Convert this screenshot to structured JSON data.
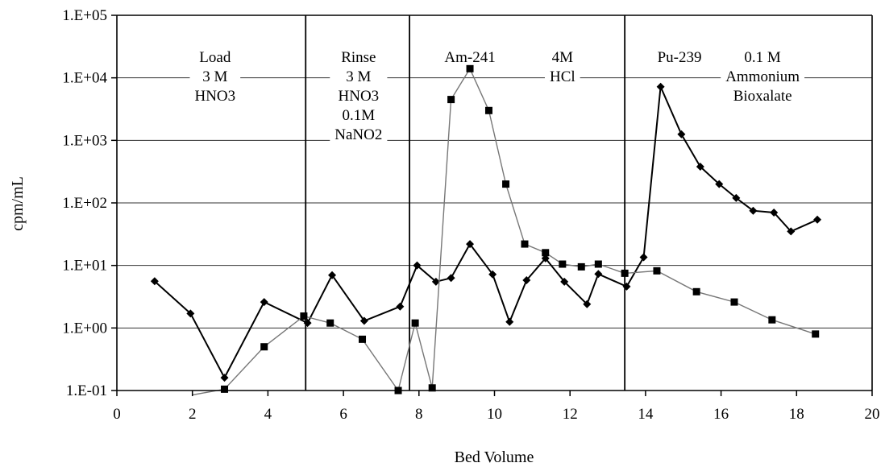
{
  "chart_data": {
    "type": "line",
    "xlabel": "Bed Volume",
    "ylabel": "cpm/mL",
    "xlim": [
      0,
      20
    ],
    "ylim": [
      0.1,
      100000
    ],
    "y_scale": "log",
    "x_ticks": [
      "0",
      "2",
      "4",
      "6",
      "8",
      "10",
      "12",
      "14",
      "16",
      "18",
      "20"
    ],
    "y_ticks": [
      "1.E-01",
      "1.E+00",
      "1.E+01",
      "1.E+02",
      "1.E+03",
      "1.E+04",
      "1.E+05"
    ],
    "grid": "horizontal",
    "series": [
      {
        "marker": "diamond",
        "color": "#000000",
        "points": [
          [
            1.0,
            5.6
          ],
          [
            1.95,
            1.7
          ],
          [
            2.85,
            0.16
          ],
          [
            3.9,
            2.6
          ],
          [
            5.05,
            1.2
          ],
          [
            5.7,
            7.0
          ],
          [
            6.55,
            1.3
          ],
          [
            7.5,
            2.2
          ],
          [
            7.95,
            10.0
          ],
          [
            8.45,
            5.5
          ],
          [
            8.85,
            6.3
          ],
          [
            9.35,
            22
          ],
          [
            9.95,
            7.2
          ],
          [
            10.4,
            1.25
          ],
          [
            10.85,
            5.8
          ],
          [
            11.35,
            13
          ],
          [
            11.85,
            5.5
          ],
          [
            12.45,
            2.4
          ],
          [
            12.75,
            7.3
          ],
          [
            13.5,
            4.6
          ],
          [
            13.95,
            13.5
          ],
          [
            14.4,
            7200
          ],
          [
            14.95,
            1250
          ],
          [
            15.45,
            380
          ],
          [
            15.95,
            200
          ],
          [
            16.4,
            120
          ],
          [
            16.85,
            75
          ],
          [
            17.4,
            70
          ],
          [
            17.85,
            35
          ],
          [
            18.55,
            54
          ]
        ]
      },
      {
        "marker": "square",
        "color": "#777777",
        "points": [
          [
            2.0,
            0.085
          ],
          [
            2.85,
            0.105
          ],
          [
            3.9,
            0.5
          ],
          [
            4.95,
            1.55
          ],
          [
            5.65,
            1.2
          ],
          [
            6.5,
            0.66
          ],
          [
            7.45,
            0.1
          ],
          [
            7.9,
            1.2
          ],
          [
            8.35,
            0.11
          ],
          [
            8.85,
            4500
          ],
          [
            9.35,
            14000
          ],
          [
            9.85,
            3000
          ],
          [
            10.3,
            200
          ],
          [
            10.8,
            22
          ],
          [
            11.35,
            16
          ],
          [
            11.8,
            10.5
          ],
          [
            12.3,
            9.5
          ],
          [
            12.75,
            10.5
          ],
          [
            13.45,
            7.5
          ],
          [
            14.3,
            8.2
          ],
          [
            15.35,
            3.8
          ],
          [
            16.35,
            2.6
          ],
          [
            17.35,
            1.35
          ],
          [
            18.5,
            0.8
          ]
        ]
      }
    ],
    "dividers": [
      5.0,
      7.75,
      13.45
    ],
    "annotations": [
      {
        "lines": [
          "Load",
          "3 M",
          "HNO3"
        ],
        "x": 2.6
      },
      {
        "lines": [
          "Rinse",
          "3 M",
          "HNO3",
          "0.1M",
          "NaNO2"
        ],
        "x": 6.4
      },
      {
        "lines": [
          "Am-241"
        ],
        "x": 9.35
      },
      {
        "lines": [
          "4M",
          "HCl"
        ],
        "x": 11.8
      },
      {
        "lines": [
          "Pu-239"
        ],
        "x": 14.9
      },
      {
        "lines": [
          "0.1 M",
          "Ammonium",
          "Bioxalate"
        ],
        "x": 17.1
      }
    ]
  }
}
